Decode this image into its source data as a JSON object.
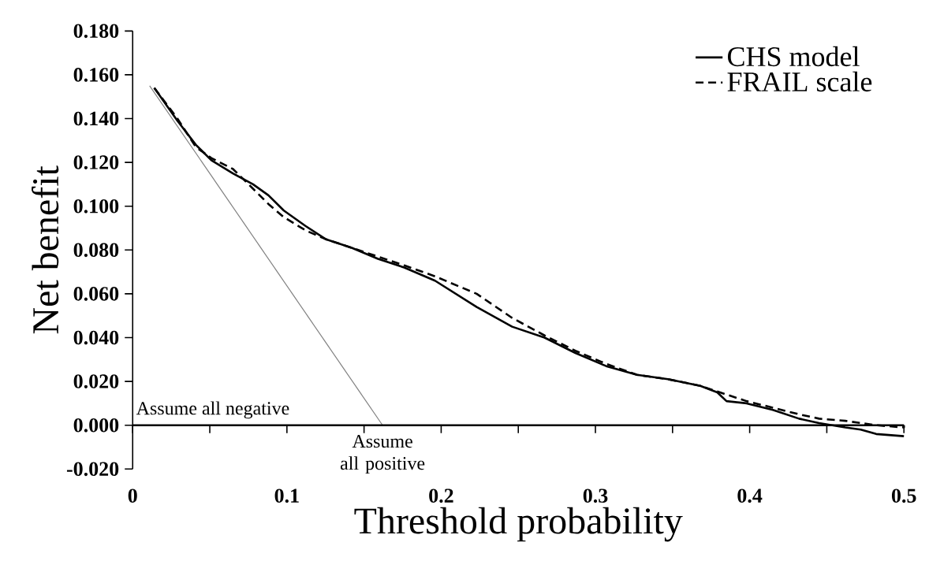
{
  "chart_data": {
    "type": "line",
    "xlabel": "Threshold probability",
    "ylabel": "Net benefit",
    "xlim": [
      0,
      0.5
    ],
    "ylim": [
      -0.02,
      0.18
    ],
    "xticks": [
      0,
      {
        "value": 0.05,
        "label": null
      },
      0.1,
      {
        "value": 0.15,
        "label": null
      },
      0.2,
      {
        "value": 0.25,
        "label": null
      },
      0.3,
      {
        "value": 0.35,
        "label": null
      },
      0.4,
      {
        "value": 0.45,
        "label": null
      },
      0.5
    ],
    "yticks": [
      {
        "value": -0.02,
        "label": "-0.020"
      },
      {
        "value": 0,
        "label": "0.000"
      },
      {
        "value": 0.02,
        "label": "0.020"
      },
      {
        "value": 0.04,
        "label": "0.040"
      },
      {
        "value": 0.06,
        "label": "0.060"
      },
      {
        "value": 0.08,
        "label": "0.080"
      },
      {
        "value": 0.1,
        "label": "0.100"
      },
      {
        "value": 0.12,
        "label": "0.120"
      },
      {
        "value": 0.14,
        "label": "0.140"
      },
      {
        "value": 0.16,
        "label": "0.160"
      },
      {
        "value": 0.18,
        "label": "0.180"
      }
    ],
    "legend": "top right",
    "marker": "none",
    "ref_lines": [
      {
        "axis": "y",
        "value": 0,
        "label": "Assume all negative",
        "color": "#000000"
      }
    ],
    "annotations": [
      {
        "text": "Assume all positive",
        "x": 0.162,
        "y": 0
      }
    ],
    "series": [
      {
        "name": "CHS model",
        "color": "#000000",
        "line_style": "solid",
        "x": [
          0.014,
          0.029,
          0.041,
          0.051,
          0.065,
          0.078,
          0.088,
          0.098,
          0.112,
          0.125,
          0.142,
          0.159,
          0.176,
          0.196,
          0.223,
          0.246,
          0.267,
          0.287,
          0.307,
          0.327,
          0.347,
          0.368,
          0.379,
          0.385,
          0.398,
          0.415,
          0.432,
          0.445,
          0.462,
          0.472,
          0.482,
          0.5
        ],
        "values": [
          0.154,
          0.139,
          0.128,
          0.121,
          0.115,
          0.11,
          0.105,
          0.098,
          0.091,
          0.085,
          0.081,
          0.076,
          0.072,
          0.066,
          0.054,
          0.045,
          0.04,
          0.033,
          0.027,
          0.023,
          0.021,
          0.018,
          0.015,
          0.011,
          0.01,
          0.007,
          0.003,
          0.001,
          -0.001,
          -0.002,
          -0.004,
          -0.005
        ]
      },
      {
        "name": "FRAIL scale",
        "color": "#000000",
        "line_style": "dashed",
        "x": [
          0.014,
          0.029,
          0.041,
          0.051,
          0.065,
          0.078,
          0.088,
          0.098,
          0.112,
          0.125,
          0.142,
          0.159,
          0.176,
          0.196,
          0.223,
          0.246,
          0.267,
          0.287,
          0.307,
          0.327,
          0.347,
          0.368,
          0.385,
          0.398,
          0.415,
          0.432,
          0.445,
          0.462,
          0.482,
          0.5,
          0.5
        ],
        "values": [
          0.154,
          0.14,
          0.127,
          0.122,
          0.117,
          0.108,
          0.101,
          0.095,
          0.089,
          0.085,
          0.081,
          0.077,
          0.073,
          0.068,
          0.06,
          0.049,
          0.041,
          0.034,
          0.028,
          0.023,
          0.021,
          0.018,
          0.014,
          0.011,
          0.008,
          0.005,
          0.003,
          0.002,
          0.0,
          -0.001,
          0.0
        ]
      },
      {
        "color": "#808080",
        "line_style": "solid",
        "x": [
          0.011,
          0.162
        ],
        "values": [
          0.155,
          0.0
        ]
      }
    ]
  }
}
